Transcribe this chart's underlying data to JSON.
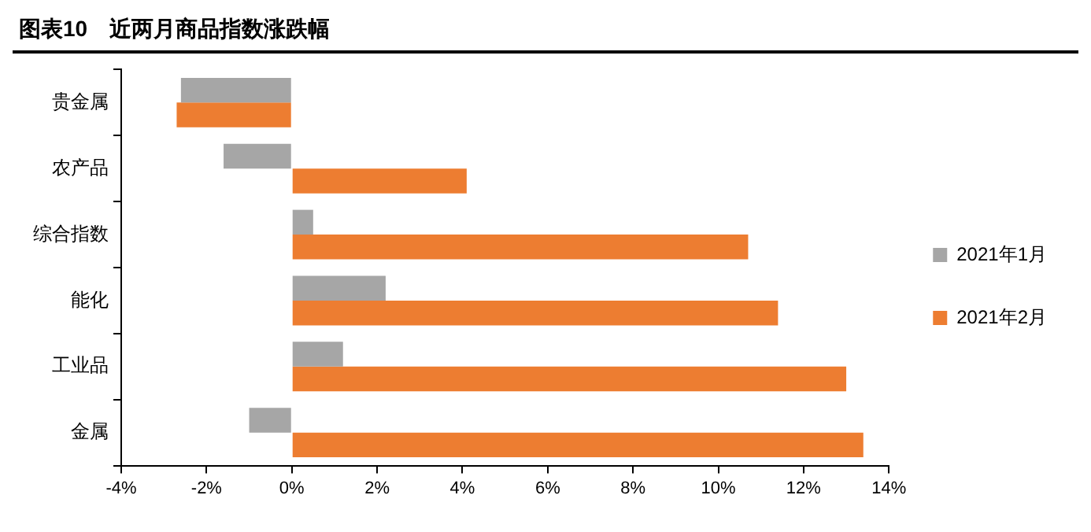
{
  "chart_data": {
    "type": "bar",
    "orientation": "horizontal",
    "title": "图表10　近两月商品指数涨跌幅",
    "categories": [
      "贵金属",
      "农产品",
      "综合指数",
      "能化",
      "工业品",
      "金属"
    ],
    "series": [
      {
        "name": "2021年1月",
        "color": "#a6a6a6",
        "values": [
          -2.6,
          -1.6,
          0.5,
          2.2,
          1.2,
          -1.0
        ]
      },
      {
        "name": "2021年2月",
        "color": "#ed7d31",
        "values": [
          -2.7,
          4.1,
          10.7,
          11.4,
          13.0,
          13.4
        ]
      }
    ],
    "xlim": [
      -4,
      14
    ],
    "xticks": [
      {
        "value": -4,
        "label": "-4%"
      },
      {
        "value": -2,
        "label": "-2%"
      },
      {
        "value": 0,
        "label": "0%"
      },
      {
        "value": 2,
        "label": "2%"
      },
      {
        "value": 4,
        "label": "4%"
      },
      {
        "value": 6,
        "label": "6%"
      },
      {
        "value": 8,
        "label": "8%"
      },
      {
        "value": 10,
        "label": "10%"
      },
      {
        "value": 12,
        "label": "12%"
      },
      {
        "value": 14,
        "label": "14%"
      }
    ],
    "grid": false,
    "legend": "right"
  }
}
